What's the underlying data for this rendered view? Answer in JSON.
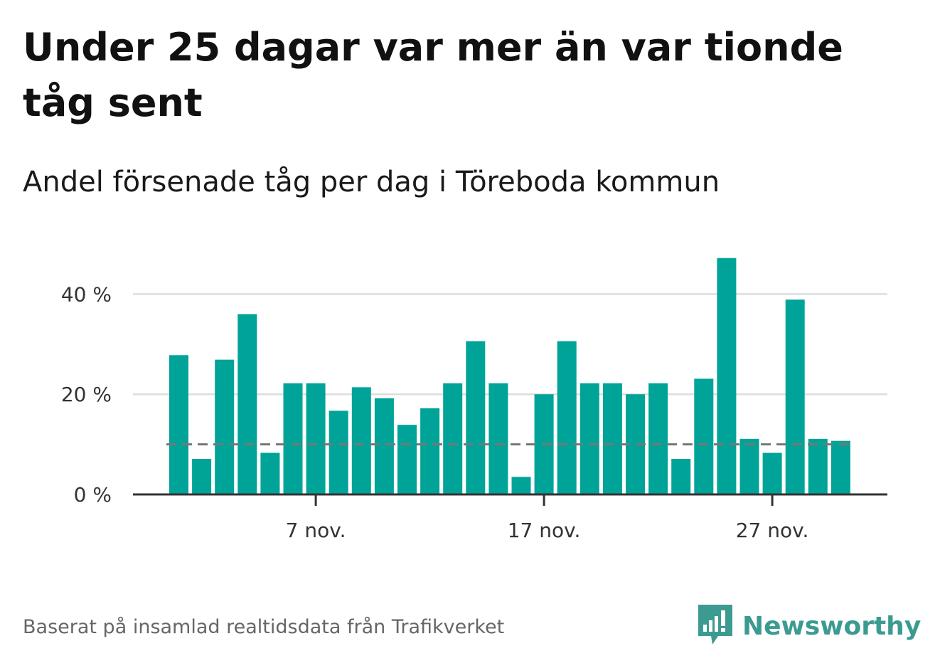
{
  "header": {
    "title": "Under 25 dagar var mer än var tionde tåg sent",
    "subtitle": "Andel försenade tåg per dag i Töreboda kommun"
  },
  "footer": {
    "source": "Baserat på insamlad realtidsdata från Trafikverket",
    "brand": "Newsworthy",
    "brand_icon": "bar-chart-speech-bubble-icon"
  },
  "colors": {
    "bar": "#00a398",
    "reference_line": "#777777",
    "grid": "#dddddd",
    "axis": "#333333",
    "brand": "#3c9b91"
  },
  "chart_data": {
    "type": "bar",
    "title": "",
    "xlabel": "",
    "ylabel": "",
    "x_tick_labels": [
      {
        "day": 7,
        "label": "7 nov."
      },
      {
        "day": 17,
        "label": "17 nov."
      },
      {
        "day": 27,
        "label": "27 nov."
      }
    ],
    "y_tick_labels": [
      {
        "value": 0,
        "label": "0 %"
      },
      {
        "value": 20,
        "label": "20 %"
      },
      {
        "value": 40,
        "label": "40 %"
      }
    ],
    "ylim": [
      0,
      50
    ],
    "grid": true,
    "reference_line": {
      "value": 10,
      "style": "dashed"
    },
    "unit": "%",
    "days": [
      1,
      2,
      3,
      4,
      5,
      6,
      7,
      8,
      9,
      10,
      11,
      12,
      13,
      14,
      15,
      16,
      17,
      18,
      19,
      20,
      21,
      22,
      23,
      24,
      25,
      26,
      27,
      28,
      29,
      30
    ],
    "values": [
      27.8,
      7.1,
      26.9,
      36.0,
      8.3,
      22.2,
      22.2,
      16.7,
      21.4,
      19.2,
      13.9,
      17.2,
      22.2,
      30.6,
      22.2,
      3.5,
      20.0,
      30.6,
      22.2,
      22.2,
      20.0,
      22.2,
      7.1,
      23.1,
      47.2,
      11.1,
      8.3,
      38.9,
      11.1,
      10.7
    ]
  }
}
